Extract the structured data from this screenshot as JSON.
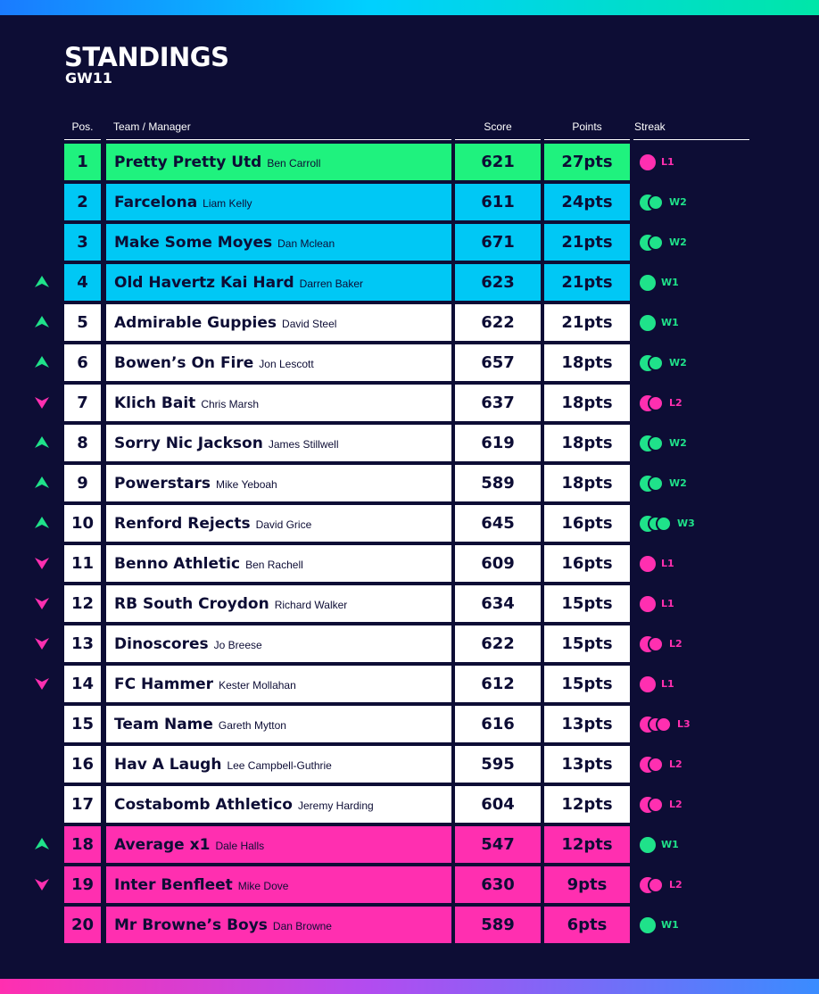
{
  "header": {
    "title": "STANDINGS",
    "subtitle": "GW11",
    "columns": {
      "pos": "Pos.",
      "team": "Team / Manager",
      "score": "Score",
      "points": "Points",
      "streak": "Streak"
    }
  },
  "colors": {
    "background": "#0d0d35",
    "first_place": "#1ff27e",
    "top_zone": "#00c8f5",
    "mid_zone": "#ffffff",
    "bottom_zone": "#ff2fb0",
    "win": "#1fe28a",
    "loss": "#ff2fb0"
  },
  "rows": [
    {
      "pos": "1",
      "team": "Pretty Pretty Utd",
      "manager": "Ben Carroll",
      "score": "621",
      "points": "27pts",
      "zone": "first",
      "movement": "none",
      "streak_result": "L",
      "streak_count": 1,
      "streak_label": "L1"
    },
    {
      "pos": "2",
      "team": "Farcelona",
      "manager": "Liam Kelly",
      "score": "611",
      "points": "24pts",
      "zone": "top",
      "movement": "none",
      "streak_result": "W",
      "streak_count": 2,
      "streak_label": "W2"
    },
    {
      "pos": "3",
      "team": "Make Some Moyes",
      "manager": "Dan Mclean",
      "score": "671",
      "points": "21pts",
      "zone": "top",
      "movement": "none",
      "streak_result": "W",
      "streak_count": 2,
      "streak_label": "W2"
    },
    {
      "pos": "4",
      "team": "Old Havertz Kai Hard",
      "manager": "Darren Baker",
      "score": "623",
      "points": "21pts",
      "zone": "top",
      "movement": "up",
      "streak_result": "W",
      "streak_count": 1,
      "streak_label": "W1"
    },
    {
      "pos": "5",
      "team": "Admirable Guppies",
      "manager": "David Steel",
      "score": "622",
      "points": "21pts",
      "zone": "mid",
      "movement": "up",
      "streak_result": "W",
      "streak_count": 1,
      "streak_label": "W1"
    },
    {
      "pos": "6",
      "team": "Bowen’s On Fire",
      "manager": "Jon Lescott",
      "score": "657",
      "points": "18pts",
      "zone": "mid",
      "movement": "up",
      "streak_result": "W",
      "streak_count": 2,
      "streak_label": "W2"
    },
    {
      "pos": "7",
      "team": "Klich Bait",
      "manager": "Chris Marsh",
      "score": "637",
      "points": "18pts",
      "zone": "mid",
      "movement": "down",
      "streak_result": "L",
      "streak_count": 2,
      "streak_label": "L2"
    },
    {
      "pos": "8",
      "team": "Sorry Nic Jackson",
      "manager": "James Stillwell",
      "score": "619",
      "points": "18pts",
      "zone": "mid",
      "movement": "up",
      "streak_result": "W",
      "streak_count": 2,
      "streak_label": "W2"
    },
    {
      "pos": "9",
      "team": "Powerstars",
      "manager": "Mike Yeboah",
      "score": "589",
      "points": "18pts",
      "zone": "mid",
      "movement": "up",
      "streak_result": "W",
      "streak_count": 2,
      "streak_label": "W2"
    },
    {
      "pos": "10",
      "team": "Renford Rejects",
      "manager": "David Grice",
      "score": "645",
      "points": "16pts",
      "zone": "mid",
      "movement": "up",
      "streak_result": "W",
      "streak_count": 3,
      "streak_label": "W3"
    },
    {
      "pos": "11",
      "team": "Benno Athletic",
      "manager": "Ben Rachell",
      "score": "609",
      "points": "16pts",
      "zone": "mid",
      "movement": "down",
      "streak_result": "L",
      "streak_count": 1,
      "streak_label": "L1"
    },
    {
      "pos": "12",
      "team": "RB South Croydon",
      "manager": "Richard Walker",
      "score": "634",
      "points": "15pts",
      "zone": "mid",
      "movement": "down",
      "streak_result": "L",
      "streak_count": 1,
      "streak_label": "L1"
    },
    {
      "pos": "13",
      "team": "Dinoscores",
      "manager": "Jo Breese",
      "score": "622",
      "points": "15pts",
      "zone": "mid",
      "movement": "down",
      "streak_result": "L",
      "streak_count": 2,
      "streak_label": "L2"
    },
    {
      "pos": "14",
      "team": "FC Hammer",
      "manager": "Kester Mollahan",
      "score": "612",
      "points": "15pts",
      "zone": "mid",
      "movement": "down",
      "streak_result": "L",
      "streak_count": 1,
      "streak_label": "L1"
    },
    {
      "pos": "15",
      "team": "Team Name",
      "manager": "Gareth Mytton",
      "score": "616",
      "points": "13pts",
      "zone": "mid",
      "movement": "none",
      "streak_result": "L",
      "streak_count": 3,
      "streak_label": "L3"
    },
    {
      "pos": "16",
      "team": "Hav A Laugh",
      "manager": "Lee Campbell-Guthrie",
      "score": "595",
      "points": "13pts",
      "zone": "mid",
      "movement": "none",
      "streak_result": "L",
      "streak_count": 2,
      "streak_label": "L2"
    },
    {
      "pos": "17",
      "team": "Costabomb Athletico",
      "manager": "Jeremy Harding",
      "score": "604",
      "points": "12pts",
      "zone": "mid",
      "movement": "none",
      "streak_result": "L",
      "streak_count": 2,
      "streak_label": "L2"
    },
    {
      "pos": "18",
      "team": "Average x1",
      "manager": "Dale Halls",
      "score": "547",
      "points": "12pts",
      "zone": "bottom",
      "movement": "up",
      "streak_result": "W",
      "streak_count": 1,
      "streak_label": "W1"
    },
    {
      "pos": "19",
      "team": "Inter Benfleet",
      "manager": "Mike Dove",
      "score": "630",
      "points": "9pts",
      "zone": "bottom",
      "movement": "down",
      "streak_result": "L",
      "streak_count": 2,
      "streak_label": "L2"
    },
    {
      "pos": "20",
      "team": "Mr Browne’s Boys",
      "manager": "Dan Browne",
      "score": "589",
      "points": "6pts",
      "zone": "bottom",
      "movement": "none",
      "streak_result": "W",
      "streak_count": 1,
      "streak_label": "W1"
    }
  ]
}
